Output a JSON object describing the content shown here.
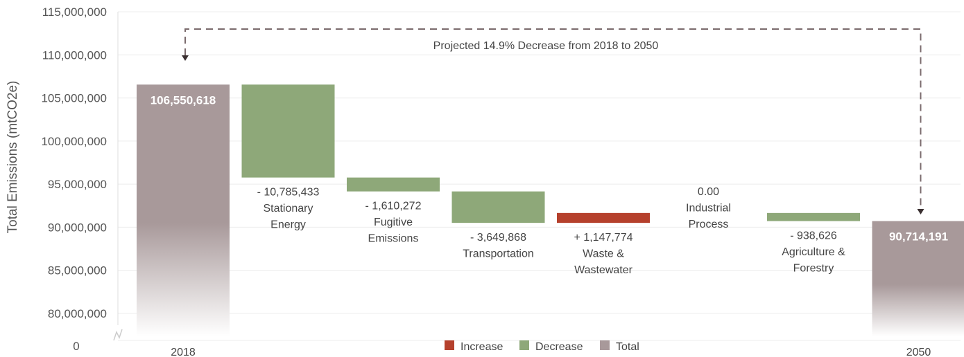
{
  "chart_data": {
    "type": "bar",
    "subtype": "waterfall",
    "ylabel": "Total Emissions (mtCO2e)",
    "y_axis_break": true,
    "ylim": [
      80000000,
      115000000
    ],
    "y_ticks": [
      80000000,
      85000000,
      90000000,
      95000000,
      100000000,
      105000000,
      110000000,
      115000000
    ],
    "y_tick_labels": [
      "80,000,000",
      "85,000,000",
      "90,000,000",
      "95,000,000",
      "100,000,000",
      "105,000,000",
      "110,000,000",
      "115,000,000"
    ],
    "y_zero_label": "0",
    "annotation": "Projected 14.9% Decrease from 2018 to 2050",
    "steps": [
      {
        "key": "start",
        "kind": "total",
        "category_lines": [
          "2018"
        ],
        "value": 106550618,
        "label_lines": [
          "106,550,618"
        ]
      },
      {
        "key": "stationary",
        "kind": "decrease",
        "category_lines": [
          "Stationary",
          "Energy"
        ],
        "value": -10785433,
        "label_lines": [
          "- 10,785,433"
        ]
      },
      {
        "key": "fugitive",
        "kind": "decrease",
        "category_lines": [
          "Fugitive",
          "Emissions"
        ],
        "value": -1610272,
        "label_lines": [
          "- 1,610,272"
        ]
      },
      {
        "key": "transportation",
        "kind": "decrease",
        "category_lines": [
          "Transportation"
        ],
        "value": -3649868,
        "label_lines": [
          "- 3,649,868"
        ]
      },
      {
        "key": "waste",
        "kind": "increase",
        "category_lines": [
          "Waste &",
          "Wastewater"
        ],
        "value": 1147774,
        "label_lines": [
          "+ 1,147,774"
        ]
      },
      {
        "key": "industrial",
        "kind": "zero",
        "category_lines": [
          "Industrial",
          "Process"
        ],
        "value": 0,
        "label_lines": [
          "0.00"
        ]
      },
      {
        "key": "agriculture",
        "kind": "decrease",
        "category_lines": [
          "Agriculture &",
          "Forestry"
        ],
        "value": -938626,
        "label_lines": [
          "- 938,626"
        ]
      },
      {
        "key": "end",
        "kind": "total",
        "category_lines": [
          "2050"
        ],
        "value": 90714191,
        "label_lines": [
          "90,714,191"
        ]
      }
    ],
    "legend": [
      {
        "label": "Increase",
        "color": "#b5402c"
      },
      {
        "label": "Decrease",
        "color": "#8ea879"
      },
      {
        "label": "Total",
        "color": "#a8999a"
      }
    ],
    "legend_position": "bottom-center",
    "colors": {
      "increase": "#b5402c",
      "decrease": "#8ea879",
      "total": "#a8999a"
    },
    "grid": true
  }
}
